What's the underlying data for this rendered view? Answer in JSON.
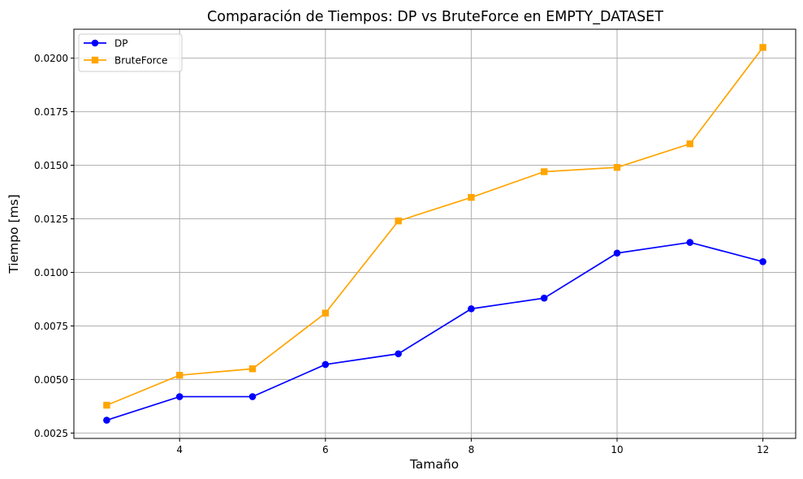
{
  "chart_data": {
    "type": "line",
    "title": "Comparación de Tiempos: DP vs BruteForce en EMPTY_DATASET",
    "xlabel": "Tamaño",
    "ylabel": "Tiempo [ms]",
    "xlim": [
      2.55,
      12.45
    ],
    "ylim": [
      0.00225,
      0.02135
    ],
    "grid": true,
    "legend_position": "top-left",
    "x": [
      3,
      4,
      5,
      6,
      7,
      8,
      9,
      10,
      11,
      12
    ],
    "x_ticks": [
      4,
      6,
      8,
      10,
      12
    ],
    "x_tick_labels": [
      "4",
      "6",
      "8",
      "10",
      "12"
    ],
    "y_ticks": [
      0.0025,
      0.005,
      0.0075,
      0.01,
      0.0125,
      0.015,
      0.0175,
      0.02
    ],
    "y_tick_labels": [
      "0.0025",
      "0.0050",
      "0.0075",
      "0.0100",
      "0.0125",
      "0.0150",
      "0.0175",
      "0.0200"
    ],
    "series": [
      {
        "name": "DP",
        "color": "#0000ff",
        "marker": "circle",
        "values": [
          0.0031,
          0.0042,
          0.0042,
          0.0057,
          0.0062,
          0.0083,
          0.0088,
          0.0109,
          0.0114,
          0.0105
        ]
      },
      {
        "name": "BruteForce",
        "color": "#ffa500",
        "marker": "square",
        "values": [
          0.0038,
          0.0052,
          0.0055,
          0.0081,
          0.0124,
          0.0135,
          0.0147,
          0.0149,
          0.016,
          0.0205
        ]
      }
    ]
  }
}
